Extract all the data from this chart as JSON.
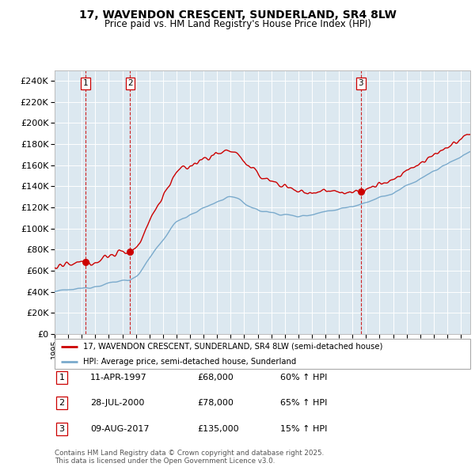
{
  "title_line1": "17, WAVENDON CRESCENT, SUNDERLAND, SR4 8LW",
  "title_line2": "Price paid vs. HM Land Registry's House Price Index (HPI)",
  "legend_property": "17, WAVENDON CRESCENT, SUNDERLAND, SR4 8LW (semi-detached house)",
  "legend_hpi": "HPI: Average price, semi-detached house, Sunderland",
  "footer": "Contains HM Land Registry data © Crown copyright and database right 2025.\nThis data is licensed under the Open Government Licence v3.0.",
  "transactions": [
    {
      "num": 1,
      "date": "11-APR-1997",
      "price": 68000,
      "hpi_pct": "60% ↑ HPI",
      "date_num": 1997.28
    },
    {
      "num": 2,
      "date": "28-JUL-2000",
      "price": 78000,
      "hpi_pct": "65% ↑ HPI",
      "date_num": 2000.58
    },
    {
      "num": 3,
      "date": "09-AUG-2017",
      "price": 135000,
      "hpi_pct": "15% ↑ HPI",
      "date_num": 2017.61
    }
  ],
  "property_color": "#cc0000",
  "hpi_color": "#7aaacc",
  "vline_color": "#cc0000",
  "plot_bg": "#dce8f0",
  "grid_color": "#ffffff",
  "ylim": [
    0,
    250000
  ],
  "yticks": [
    0,
    20000,
    40000,
    60000,
    80000,
    100000,
    120000,
    140000,
    160000,
    180000,
    200000,
    220000,
    240000
  ],
  "xlim_start": 1995.0,
  "xlim_end": 2025.7
}
